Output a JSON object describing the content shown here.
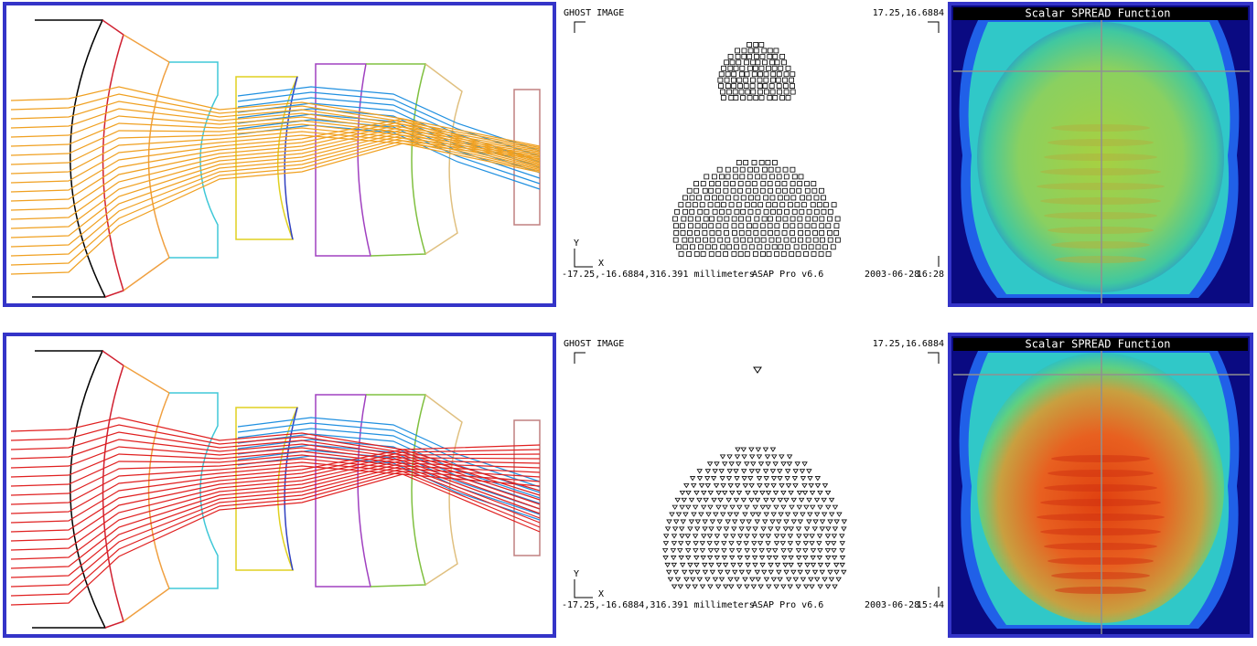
{
  "rows": [
    {
      "ghost_image": {
        "title": "GHOST IMAGE",
        "corner": "17.25,16.6884",
        "footer_left": "-17.25,-16.6884,316.391 millimeters",
        "footer_mid": "ASAP Pro v6.6",
        "footer_date": "2003-06-28",
        "footer_time": "16:28",
        "y_axis": "Y",
        "x_axis": "X"
      },
      "spread_function": {
        "title": "Scalar SPREAD Function"
      }
    },
    {
      "ghost_image": {
        "title": "GHOST IMAGE",
        "corner": "17.25,16.6884",
        "footer_left": "-17.25,-16.6884,316.391 millimeters",
        "footer_mid": "ASAP Pro v6.6",
        "footer_date": "2003-06-28",
        "footer_time": "15:44",
        "y_axis": "Y",
        "x_axis": "X"
      },
      "spread_function": {
        "title": "Scalar SPREAD Function"
      }
    }
  ]
}
